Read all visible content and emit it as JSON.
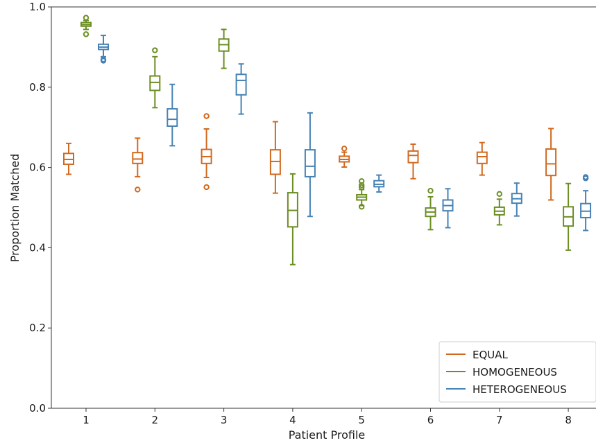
{
  "chart_data": {
    "type": "boxplot",
    "xlabel": "Patient Profile",
    "ylabel": "Proportion Matched",
    "ylim": [
      0.0,
      1.0
    ],
    "yticks": [
      "0.0",
      "0.2",
      "0.4",
      "0.6",
      "0.8",
      "1.0"
    ],
    "categories": [
      "1",
      "2",
      "3",
      "4",
      "5",
      "6",
      "7",
      "8"
    ],
    "grid": false,
    "legend_position": "bottom-right",
    "series": [
      {
        "name": "EQUAL",
        "color": "#d2691e",
        "boxes": [
          {
            "q1": 0.608,
            "med": 0.62,
            "q3": 0.635,
            "wlo": 0.583,
            "whi": 0.66,
            "fliers": []
          },
          {
            "q1": 0.61,
            "med": 0.621,
            "q3": 0.637,
            "wlo": 0.577,
            "whi": 0.673,
            "fliers": [
              0.545
            ]
          },
          {
            "q1": 0.61,
            "med": 0.627,
            "q3": 0.645,
            "wlo": 0.575,
            "whi": 0.696,
            "fliers": [
              0.551,
              0.728
            ]
          },
          {
            "q1": 0.583,
            "med": 0.615,
            "q3": 0.644,
            "wlo": 0.536,
            "whi": 0.714,
            "fliers": []
          },
          {
            "q1": 0.614,
            "med": 0.62,
            "q3": 0.628,
            "wlo": 0.601,
            "whi": 0.638,
            "fliers": [
              0.647
            ]
          },
          {
            "q1": 0.612,
            "med": 0.63,
            "q3": 0.641,
            "wlo": 0.572,
            "whi": 0.658,
            "fliers": []
          },
          {
            "q1": 0.61,
            "med": 0.627,
            "q3": 0.638,
            "wlo": 0.581,
            "whi": 0.662,
            "fliers": []
          },
          {
            "q1": 0.58,
            "med": 0.609,
            "q3": 0.646,
            "wlo": 0.519,
            "whi": 0.697,
            "fliers": []
          }
        ]
      },
      {
        "name": "HOMOGENEOUS",
        "color": "#6b8e23",
        "boxes": [
          {
            "q1": 0.952,
            "med": 0.956,
            "q3": 0.961,
            "wlo": 0.944,
            "whi": 0.966,
            "fliers": [
              0.932,
              0.973
            ]
          },
          {
            "q1": 0.792,
            "med": 0.812,
            "q3": 0.828,
            "wlo": 0.749,
            "whi": 0.876,
            "fliers": [
              0.892
            ]
          },
          {
            "q1": 0.89,
            "med": 0.906,
            "q3": 0.92,
            "wlo": 0.847,
            "whi": 0.944,
            "fliers": []
          },
          {
            "q1": 0.452,
            "med": 0.493,
            "q3": 0.537,
            "wlo": 0.358,
            "whi": 0.584,
            "fliers": []
          },
          {
            "q1": 0.519,
            "med": 0.526,
            "q3": 0.532,
            "wlo": 0.505,
            "whi": 0.545,
            "fliers": [
              0.502,
              0.551,
              0.556,
              0.566
            ]
          },
          {
            "q1": 0.478,
            "med": 0.489,
            "q3": 0.499,
            "wlo": 0.445,
            "whi": 0.527,
            "fliers": [
              0.542
            ]
          },
          {
            "q1": 0.482,
            "med": 0.491,
            "q3": 0.501,
            "wlo": 0.457,
            "whi": 0.521,
            "fliers": [
              0.534
            ]
          },
          {
            "q1": 0.454,
            "med": 0.477,
            "q3": 0.502,
            "wlo": 0.394,
            "whi": 0.56,
            "fliers": []
          }
        ]
      },
      {
        "name": "HETEROGENEOUS",
        "color": "#4682b4",
        "boxes": [
          {
            "q1": 0.894,
            "med": 0.9,
            "q3": 0.907,
            "wlo": 0.876,
            "whi": 0.929,
            "fliers": [
              0.866,
              0.869
            ]
          },
          {
            "q1": 0.703,
            "med": 0.72,
            "q3": 0.746,
            "wlo": 0.654,
            "whi": 0.807,
            "fliers": []
          },
          {
            "q1": 0.781,
            "med": 0.817,
            "q3": 0.832,
            "wlo": 0.733,
            "whi": 0.858,
            "fliers": []
          },
          {
            "q1": 0.577,
            "med": 0.603,
            "q3": 0.644,
            "wlo": 0.478,
            "whi": 0.736,
            "fliers": []
          },
          {
            "q1": 0.552,
            "med": 0.558,
            "q3": 0.567,
            "wlo": 0.539,
            "whi": 0.581,
            "fliers": []
          },
          {
            "q1": 0.492,
            "med": 0.505,
            "q3": 0.519,
            "wlo": 0.45,
            "whi": 0.547,
            "fliers": []
          },
          {
            "q1": 0.511,
            "med": 0.522,
            "q3": 0.535,
            "wlo": 0.479,
            "whi": 0.561,
            "fliers": []
          },
          {
            "q1": 0.475,
            "med": 0.491,
            "q3": 0.51,
            "wlo": 0.443,
            "whi": 0.542,
            "fliers": [
              0.573,
              0.576
            ]
          }
        ]
      }
    ]
  }
}
